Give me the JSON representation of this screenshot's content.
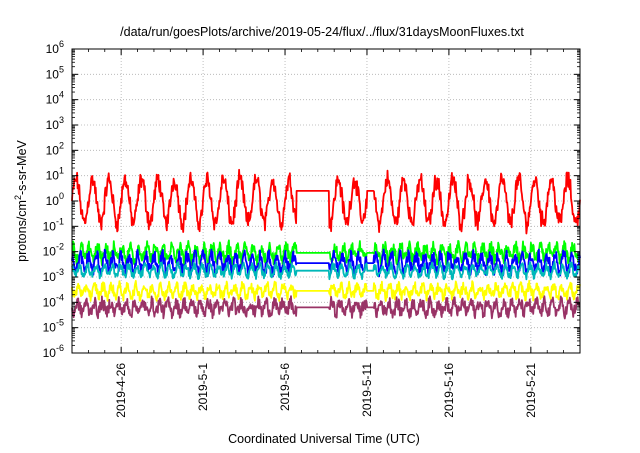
{
  "chart_data": {
    "type": "line",
    "title": "/data/run/goesPlots/archive/2019-05-24/flux/../flux/31daysMoonFluxes.txt",
    "xlabel": "Coordinated Universal Time (UTC)",
    "ylabel_base": "protons/cm",
    "ylabel_sup": "2",
    "ylabel_rest": "-s-sr-MeV",
    "yscale": "log",
    "ylim_exp": [
      -6,
      6
    ],
    "y_ticks": [
      {
        "exp": "-6"
      },
      {
        "exp": "-5"
      },
      {
        "exp": "-4"
      },
      {
        "exp": "-3"
      },
      {
        "exp": "-2"
      },
      {
        "exp": "-1"
      },
      {
        "exp": "0"
      },
      {
        "exp": "1"
      },
      {
        "exp": "2"
      },
      {
        "exp": "3"
      },
      {
        "exp": "4"
      },
      {
        "exp": "5"
      },
      {
        "exp": "6"
      }
    ],
    "y_tick_base": "10",
    "xlim_days": [
      0,
      31
    ],
    "x_ticks": [
      {
        "day": 3,
        "label": "2019-4-26"
      },
      {
        "day": 8,
        "label": "2019-5-1"
      },
      {
        "day": 13,
        "label": "2019-5-6"
      },
      {
        "day": 18,
        "label": "2019-5-11"
      },
      {
        "day": 23,
        "label": "2019-5-16"
      },
      {
        "day": 28,
        "label": "2019-5-21"
      }
    ],
    "grid": true,
    "series": [
      {
        "color": "#ff0000",
        "base_log": 0.0,
        "amp": 0.85,
        "period": 1.0,
        "noise": 0.25
      },
      {
        "color": "#00ff00",
        "base_log": -2.05,
        "amp": 0.25,
        "period": 0.5,
        "noise": 0.25
      },
      {
        "color": "#0000ff",
        "base_log": -2.45,
        "amp": 0.3,
        "period": 0.5,
        "noise": 0.25
      },
      {
        "color": "#00b8b8",
        "base_log": -2.75,
        "amp": 0.2,
        "period": 0.5,
        "noise": 0.15
      },
      {
        "color": "#ffff00",
        "base_log": -3.55,
        "amp": 0.2,
        "period": 0.5,
        "noise": 0.2
      },
      {
        "color": "#993366",
        "base_log": -4.2,
        "amp": 0.2,
        "period": 0.5,
        "noise": 0.25
      }
    ],
    "gaps": [
      {
        "from": 13.7,
        "to": 15.7
      },
      {
        "from": 18.0,
        "to": 18.4
      }
    ]
  }
}
